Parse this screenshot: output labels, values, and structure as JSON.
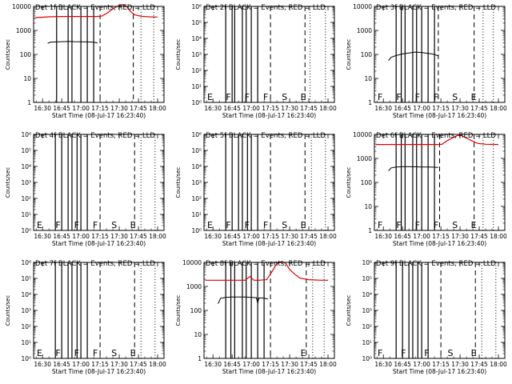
{
  "figure": {
    "title": "",
    "x_axis_title": "Start Time (08-Jul-17 16:23:40)",
    "y_axis_title": "Counts/sec",
    "x_tick_labels": [
      "16:30",
      "16:45",
      "17:00",
      "17:15",
      "17:30",
      "17:45",
      "18:00"
    ],
    "colors": {
      "events": "#000000",
      "lld": "#dd0000",
      "frame": "#000000",
      "background": "#ffffff"
    }
  },
  "chart_data": [
    {
      "type": "line",
      "panel": "Det 1f",
      "title": "Det 1f BLACK = Events, RED = LLD",
      "xlabel": "Start Time (08-Jul-17 16:23:40)",
      "ylabel": "Counts/sec",
      "xlim": [
        "16:23",
        "18:05"
      ],
      "ylim": [
        1,
        10000
      ],
      "yscale": "log",
      "y_tick_labels": [
        "1",
        "10",
        "100",
        "1000",
        "10000"
      ],
      "solid_markers": [
        "16:41",
        "16:50",
        "16:53",
        "17:00",
        "17:05",
        "17:10"
      ],
      "dashed_markers": [
        "17:15",
        "17:41"
      ],
      "dotted_markers": [
        "17:47",
        "17:57"
      ],
      "marker_labels": [],
      "series": [
        {
          "color": "#000000",
          "x": [
            "16:34",
            "16:36",
            "16:40",
            "16:45",
            "16:50",
            "16:55",
            "17:00",
            "17:05",
            "17:10",
            "17:13"
          ],
          "y": [
            290,
            320,
            330,
            340,
            350,
            340,
            335,
            330,
            320,
            300
          ]
        },
        {
          "color": "#dd0000",
          "x": [
            "16:24",
            "16:35",
            "16:45",
            "16:55",
            "17:05",
            "17:12",
            "17:16",
            "17:20",
            "17:25",
            "17:30",
            "17:33",
            "17:36",
            "17:39",
            "17:42",
            "17:47",
            "17:53",
            "18:00"
          ],
          "y": [
            3400,
            3700,
            3800,
            3800,
            3800,
            3800,
            3900,
            5000,
            8000,
            11000,
            12000,
            9500,
            6000,
            4500,
            3900,
            3700,
            3600
          ]
        }
      ]
    },
    {
      "type": "line",
      "panel": "Det 2f",
      "title": "Det 2f BLACK = Events, RED = LLD",
      "xlabel": "Start Time (08-Jul-17 16:23:40)",
      "ylabel": "Counts/sec",
      "xlim": [
        "16:23",
        "18:05"
      ],
      "ylim": [
        1,
        1000000
      ],
      "yscale": "log",
      "y_tick_labels": [
        "10⁰",
        "10¹",
        "10²",
        "10³",
        "10⁴",
        "10⁵",
        "10⁶"
      ],
      "solid_markers": [
        "16:40",
        "16:45",
        "16:47",
        "16:53",
        "16:56",
        "17:00",
        "17:05"
      ],
      "dashed_markers": [
        "17:15",
        "17:42"
      ],
      "dotted_markers": [
        "17:46",
        "17:58"
      ],
      "marker_labels": [
        "E",
        "F",
        "F",
        "F",
        "S",
        "E"
      ],
      "series": []
    },
    {
      "type": "line",
      "panel": "Det 3f",
      "title": "Det 3f BLACK = Events, RED = LLD",
      "xlabel": "Start Time (08-Jul-17 16:23:40)",
      "ylabel": "Counts/sec",
      "xlim": [
        "16:23",
        "18:05"
      ],
      "ylim": [
        1,
        10000
      ],
      "yscale": "log",
      "y_tick_labels": [
        "1",
        "10",
        "100",
        "1000",
        "10000"
      ],
      "solid_markers": [
        "16:40",
        "16:44",
        "16:47",
        "16:53",
        "16:56",
        "17:00",
        "17:05",
        "17:10"
      ],
      "dashed_markers": [
        "17:13",
        "17:41"
      ],
      "dotted_markers": [
        "17:48",
        "17:56"
      ],
      "marker_labels": [
        "F",
        "F",
        "F",
        "F",
        "S",
        "E"
      ],
      "series": [
        {
          "color": "#000000",
          "x": [
            "16:34",
            "16:36",
            "16:40",
            "16:45",
            "16:50",
            "16:55",
            "17:00",
            "17:05",
            "17:10",
            "17:13"
          ],
          "y": [
            55,
            75,
            90,
            105,
            115,
            125,
            120,
            110,
            100,
            85
          ]
        }
      ]
    },
    {
      "type": "line",
      "panel": "Det 4f",
      "title": "Det 4f BLACK = Events, RED = LLD",
      "xlabel": "Start Time (08-Jul-17 16:23:40)",
      "ylabel": "Counts/sec",
      "xlim": [
        "16:23",
        "18:05"
      ],
      "ylim": [
        1,
        1000000
      ],
      "yscale": "log",
      "y_tick_labels": [
        "10⁰",
        "10¹",
        "10²",
        "10³",
        "10⁴",
        "10⁵",
        "10⁶"
      ],
      "solid_markers": [
        "16:40",
        "16:45",
        "16:50",
        "16:53",
        "16:57",
        "17:00",
        "17:05"
      ],
      "dashed_markers": [
        "17:15",
        "17:42"
      ],
      "dotted_markers": [
        "17:47",
        "17:58"
      ],
      "marker_labels": [
        "E",
        "F",
        "F",
        "F",
        "S",
        "E"
      ],
      "series": []
    },
    {
      "type": "line",
      "panel": "Det 5f",
      "title": "Det 5f BLACK = Events, RED = LLD",
      "xlabel": "Start Time (08-Jul-17 16:23:40)",
      "ylabel": "Counts/sec",
      "xlim": [
        "16:23",
        "18:05"
      ],
      "ylim": [
        1,
        1000000
      ],
      "yscale": "log",
      "y_tick_labels": [
        "10⁰",
        "10¹",
        "10²",
        "10³",
        "10⁴",
        "10⁵",
        "10⁶"
      ],
      "solid_markers": [
        "16:40",
        "16:45",
        "16:50",
        "16:53",
        "16:57",
        "17:00",
        "17:05"
      ],
      "dashed_markers": [
        "17:15",
        "17:42"
      ],
      "dotted_markers": [
        "17:47",
        "17:58"
      ],
      "marker_labels": [
        "E",
        "F",
        "F",
        "F",
        "S",
        "E"
      ],
      "series": []
    },
    {
      "type": "line",
      "panel": "Det 6f",
      "title": "Det 6f BLACK = Events, RED = LLD",
      "xlabel": "Start Time (08-Jul-17 16:23:40)",
      "ylabel": "Counts/sec",
      "xlim": [
        "16:23",
        "18:05"
      ],
      "ylim": [
        1,
        10000
      ],
      "yscale": "log",
      "y_tick_labels": [
        "1",
        "10",
        "100",
        "1000",
        "10000"
      ],
      "solid_markers": [
        "16:40",
        "16:44",
        "16:47",
        "16:53",
        "16:56",
        "17:00",
        "17:05",
        "17:10"
      ],
      "dashed_markers": [
        "17:14",
        "17:41"
      ],
      "dotted_markers": [
        "17:48",
        "17:56"
      ],
      "marker_labels": [
        "F",
        "F",
        "F",
        "F",
        "S",
        "E"
      ],
      "series": [
        {
          "color": "#000000",
          "x": [
            "16:34",
            "16:36",
            "16:40",
            "16:45",
            "16:50",
            "16:55",
            "17:00",
            "17:05",
            "17:10",
            "17:13"
          ],
          "y": [
            300,
            400,
            440,
            450,
            450,
            445,
            440,
            440,
            430,
            420
          ]
        },
        {
          "color": "#dd0000",
          "x": [
            "16:24",
            "16:35",
            "16:45",
            "16:55",
            "17:05",
            "17:13",
            "17:16",
            "17:20",
            "17:25",
            "17:28",
            "17:31",
            "17:35",
            "17:39",
            "17:44",
            "17:50",
            "18:00"
          ],
          "y": [
            3800,
            3800,
            3800,
            3800,
            3800,
            3800,
            3900,
            5500,
            7500,
            9000,
            9000,
            7000,
            5500,
            4200,
            3900,
            3800
          ]
        }
      ]
    },
    {
      "type": "line",
      "panel": "Det 7f",
      "title": "Det 7f BLACK = Events, RED = LLD",
      "xlabel": "Start Time (08-Jul-17 16:23:40)",
      "ylabel": "Counts/sec",
      "xlim": [
        "16:23",
        "18:05"
      ],
      "ylim": [
        1,
        1000000
      ],
      "yscale": "log",
      "y_tick_labels": [
        "10⁰",
        "10¹",
        "10²",
        "10³",
        "10⁴",
        "10⁵",
        "10⁶"
      ],
      "solid_markers": [
        "16:40",
        "16:45",
        "16:50",
        "16:53",
        "16:57",
        "17:00",
        "17:05"
      ],
      "dashed_markers": [
        "17:15",
        "17:42"
      ],
      "dotted_markers": [
        "17:47",
        "17:58"
      ],
      "marker_labels": [
        "E",
        "F",
        "F",
        "F",
        "S",
        "E"
      ],
      "series": []
    },
    {
      "type": "line",
      "panel": "Det 8f",
      "title": "Det 8f BLACK = Events, RED = LLD",
      "xlabel": "Start Time (08-Jul-17 16:23:40)",
      "ylabel": "Counts/sec",
      "xlim": [
        "16:23",
        "18:05"
      ],
      "ylim": [
        1,
        10000
      ],
      "yscale": "log",
      "y_tick_labels": [
        "1",
        "10",
        "100",
        "1000",
        "10000"
      ],
      "solid_markers": [
        "16:40",
        "16:44",
        "16:47",
        "16:53",
        "16:56",
        "17:00",
        "17:05",
        "17:10"
      ],
      "dashed_markers": [
        "17:15",
        "17:43"
      ],
      "dotted_markers": [
        "17:48",
        "17:57"
      ],
      "marker_labels": [
        "E"
      ],
      "series": [
        {
          "color": "#000000",
          "x": [
            "16:34",
            "16:36",
            "16:40",
            "16:45",
            "16:50",
            "16:55",
            "17:00",
            "17:04",
            "17:05",
            "17:06",
            "17:10",
            "17:13"
          ],
          "y": [
            190,
            320,
            350,
            360,
            360,
            360,
            350,
            340,
            200,
            330,
            320,
            300
          ]
        },
        {
          "color": "#dd0000",
          "x": [
            "16:24",
            "16:35",
            "16:45",
            "16:55",
            "16:59",
            "17:02",
            "17:06",
            "17:12",
            "17:16",
            "17:20",
            "17:24",
            "17:27",
            "17:30",
            "17:34",
            "17:38",
            "17:45",
            "17:55",
            "18:00"
          ],
          "y": [
            1800,
            1800,
            1800,
            1800,
            2600,
            1800,
            1800,
            1900,
            4000,
            9000,
            11000,
            9000,
            5000,
            3200,
            2200,
            1900,
            1800,
            1800
          ]
        }
      ]
    },
    {
      "type": "line",
      "panel": "Det 9f",
      "title": "Det 9f BLACK = Events, RED = LLD",
      "xlabel": "Start Time (08-Jul-17 16:23:40)",
      "ylabel": "Counts/sec",
      "xlim": [
        "16:23",
        "18:05"
      ],
      "ylim": [
        1,
        1000000
      ],
      "yscale": "log",
      "y_tick_labels": [
        "10⁰",
        "10¹",
        "10²",
        "10³",
        "10⁴",
        "10⁵",
        "10⁶"
      ],
      "solid_markers": [
        "16:40",
        "16:45",
        "16:50",
        "16:53",
        "16:57",
        "17:00",
        "17:05"
      ],
      "dashed_markers": [
        "17:15",
        "17:42"
      ],
      "dotted_markers": [
        "17:47",
        "17:58"
      ],
      "marker_labels": [
        "F",
        "F",
        "F",
        "S",
        "E"
      ],
      "series": []
    }
  ]
}
